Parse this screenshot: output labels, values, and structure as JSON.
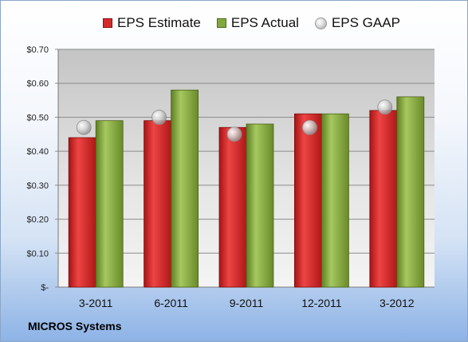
{
  "chart_data": {
    "type": "bar",
    "categories": [
      "3-2011",
      "6-2011",
      "9-2011",
      "12-2011",
      "3-2012"
    ],
    "series": [
      {
        "name": "EPS Estimate",
        "values": [
          0.44,
          0.49,
          0.47,
          0.51,
          0.52
        ],
        "color": "#d42a2a",
        "kind": "bar"
      },
      {
        "name": "EPS Actual",
        "values": [
          0.49,
          0.58,
          0.48,
          0.51,
          0.56
        ],
        "color": "#84a83b",
        "kind": "bar"
      },
      {
        "name": "EPS GAAP",
        "values": [
          0.47,
          0.5,
          0.45,
          0.47,
          0.53
        ],
        "color": "#b8b8b8",
        "kind": "marker"
      }
    ],
    "yticks": [
      "$-",
      "$0.10",
      "$0.20",
      "$0.30",
      "$0.40",
      "$0.50",
      "$0.60",
      "$0.70"
    ],
    "ylim": [
      0,
      0.7
    ],
    "grid": true,
    "legend_position": "top"
  },
  "company": "MICROS Systems"
}
